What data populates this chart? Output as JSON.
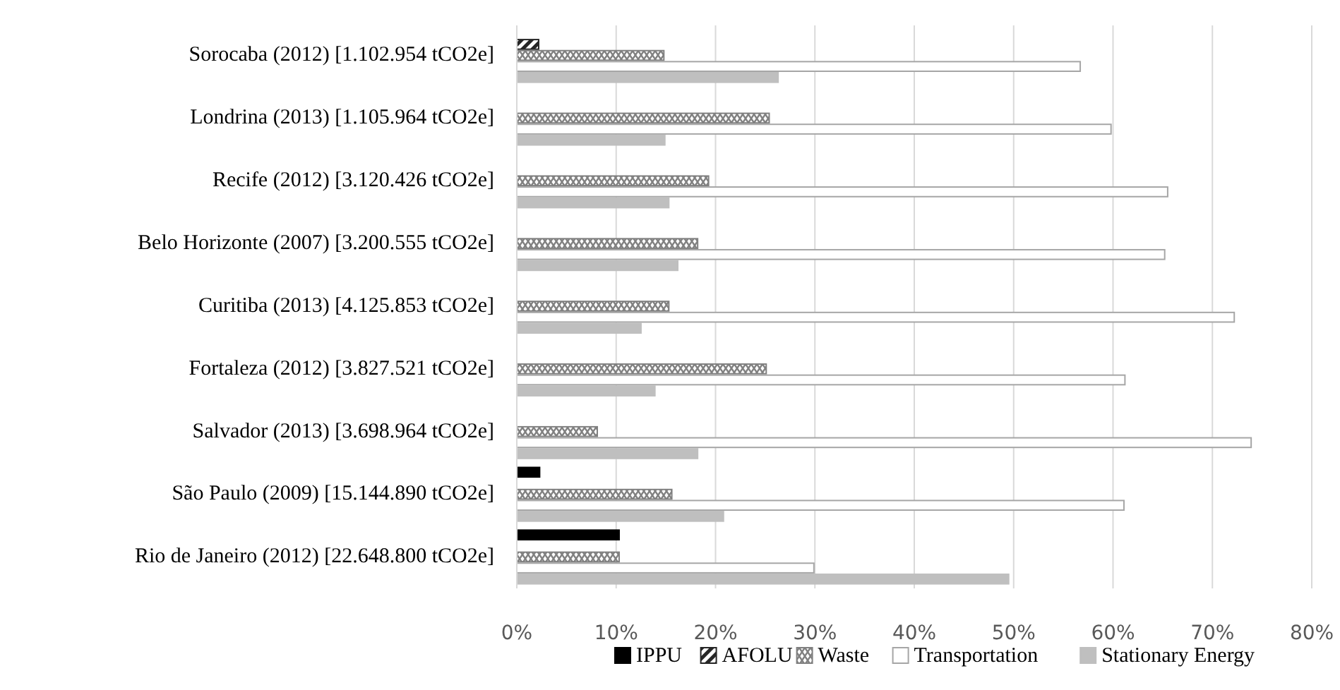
{
  "chart_data": {
    "type": "bar",
    "orientation": "horizontal",
    "categories": [
      "Sorocaba (2012) [1.102.954 tCO2e]",
      "Londrina (2013) [1.105.964 tCO2e]",
      "Recife (2012) [3.120.426 tCO2e]",
      "Belo Horizonte (2007) [3.200.555 tCO2e]",
      "Curitiba (2013) [4.125.853 tCO2e]",
      "Fortaleza (2012) [3.827.521 tCO2e]",
      "Salvador (2013) [3.698.964 tCO2e]",
      "São Paulo (2009) [15.144.890 tCO2e]",
      "Rio de Janeiro (2012) [22.648.800 tCO2e]"
    ],
    "series": [
      {
        "name": "IPPU",
        "color": "#000000",
        "values": [
          null,
          null,
          null,
          null,
          null,
          null,
          null,
          2.3,
          10.3
        ]
      },
      {
        "name": "AFOLU",
        "color": "#262626",
        "values": [
          2.2,
          null,
          null,
          null,
          null,
          null,
          null,
          null,
          null
        ]
      },
      {
        "name": "Waste",
        "color": "#808080",
        "values": [
          14.8,
          25.4,
          19.3,
          18.2,
          15.3,
          25.1,
          8.1,
          15.6,
          10.3
        ]
      },
      {
        "name": "Transportation",
        "color": "#ffffff",
        "values": [
          56.7,
          59.8,
          65.5,
          65.2,
          72.2,
          61.2,
          73.9,
          61.1,
          29.9
        ]
      },
      {
        "name": "Stationary Energy",
        "color": "#bfbfbf",
        "values": [
          26.3,
          14.9,
          15.3,
          16.2,
          12.5,
          13.9,
          18.2,
          20.8,
          49.5
        ]
      }
    ],
    "xlim": [
      0,
      80
    ],
    "xticks": [
      {
        "value": 0,
        "label": "0%"
      },
      {
        "value": 10,
        "label": "10%"
      },
      {
        "value": 20,
        "label": "20%"
      },
      {
        "value": 30,
        "label": "30%"
      },
      {
        "value": 40,
        "label": "40%"
      },
      {
        "value": 50,
        "label": "50%"
      },
      {
        "value": 60,
        "label": "60%"
      },
      {
        "value": 70,
        "label": "70%"
      },
      {
        "value": 80,
        "label": "80%"
      }
    ],
    "grid": "x",
    "legend": "bottom"
  }
}
